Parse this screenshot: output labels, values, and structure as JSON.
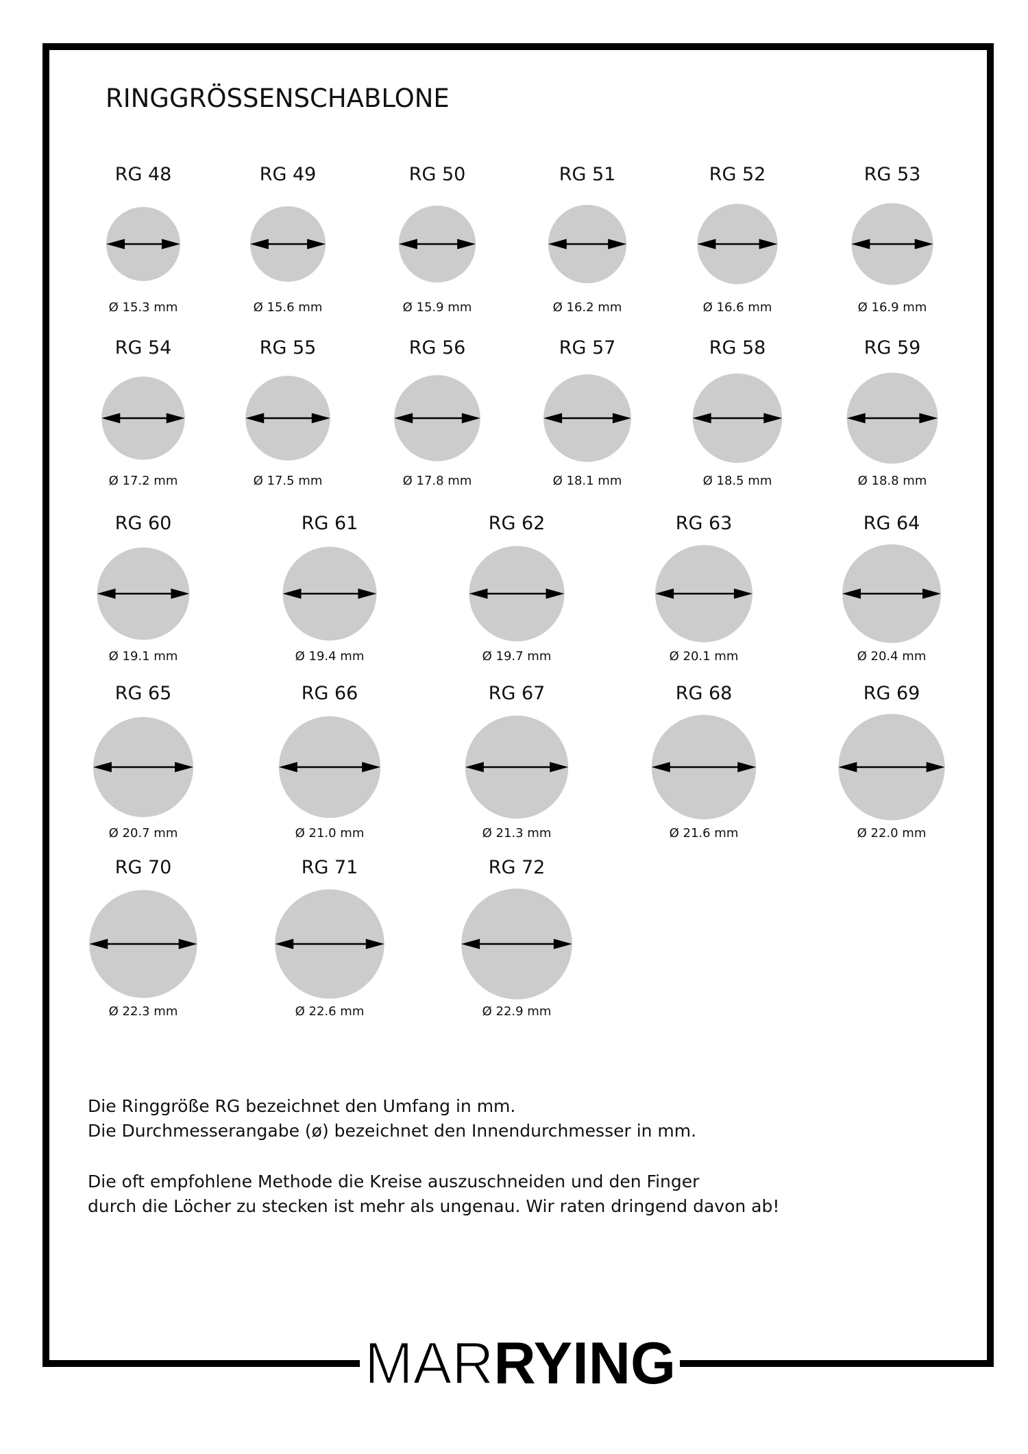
{
  "title": "RINGGRÖSSENSCHABLONE",
  "colors": {
    "circle_fill": "#cccccc",
    "border": "#000000",
    "arrow": "#000000"
  },
  "rows": [
    [
      {
        "label": "RG 48",
        "diameter_text": "Ø 15.3 mm",
        "diameter_mm": 15.3
      },
      {
        "label": "RG 49",
        "diameter_text": "Ø 15.6 mm",
        "diameter_mm": 15.6
      },
      {
        "label": "RG 50",
        "diameter_text": "Ø 15.9 mm",
        "diameter_mm": 15.9
      },
      {
        "label": "RG 51",
        "diameter_text": "Ø 16.2 mm",
        "diameter_mm": 16.2
      },
      {
        "label": "RG 52",
        "diameter_text": "Ø 16.6 mm",
        "diameter_mm": 16.6
      },
      {
        "label": "RG 53",
        "diameter_text": "Ø 16.9 mm",
        "diameter_mm": 16.9
      }
    ],
    [
      {
        "label": "RG 54",
        "diameter_text": "Ø 17.2 mm",
        "diameter_mm": 17.2
      },
      {
        "label": "RG 55",
        "diameter_text": "Ø 17.5 mm",
        "diameter_mm": 17.5
      },
      {
        "label": "RG 56",
        "diameter_text": "Ø 17.8 mm",
        "diameter_mm": 17.8
      },
      {
        "label": "RG 57",
        "diameter_text": "Ø 18.1 mm",
        "diameter_mm": 18.1
      },
      {
        "label": "RG 58",
        "diameter_text": "Ø 18.5 mm",
        "diameter_mm": 18.5
      },
      {
        "label": "RG 59",
        "diameter_text": "Ø 18.8 mm",
        "diameter_mm": 18.8
      }
    ],
    [
      {
        "label": "RG 60",
        "diameter_text": "Ø 19.1 mm",
        "diameter_mm": 19.1
      },
      {
        "label": "RG 61",
        "diameter_text": "Ø 19.4 mm",
        "diameter_mm": 19.4
      },
      {
        "label": "RG 62",
        "diameter_text": "Ø 19.7 mm",
        "diameter_mm": 19.7
      },
      {
        "label": "RG 63",
        "diameter_text": "Ø 20.1 mm",
        "diameter_mm": 20.1
      },
      {
        "label": "RG 64",
        "diameter_text": "Ø 20.4 mm",
        "diameter_mm": 20.4
      }
    ],
    [
      {
        "label": "RG 65",
        "diameter_text": "Ø 20.7 mm",
        "diameter_mm": 20.7
      },
      {
        "label": "RG 66",
        "diameter_text": "Ø 21.0 mm",
        "diameter_mm": 21.0
      },
      {
        "label": "RG 67",
        "diameter_text": "Ø 21.3 mm",
        "diameter_mm": 21.3
      },
      {
        "label": "RG 68",
        "diameter_text": "Ø 21.6 mm",
        "diameter_mm": 21.6
      },
      {
        "label": "RG 69",
        "diameter_text": "Ø 22.0 mm",
        "diameter_mm": 22.0
      }
    ],
    [
      {
        "label": "RG 70",
        "diameter_text": "Ø 22.3 mm",
        "diameter_mm": 22.3
      },
      {
        "label": "RG 71",
        "diameter_text": "Ø 22.6 mm",
        "diameter_mm": 22.6
      },
      {
        "label": "RG 72",
        "diameter_text": "Ø 22.9 mm",
        "diameter_mm": 22.9
      }
    ]
  ],
  "notes": [
    "Die Ringgröße RG bezeichnet den Umfang in mm.",
    "Die Durchmesserangabe (ø) bezeichnet den Innendurchmesser in mm.",
    "Die oft empfohlene Methode die Kreise auszuschneiden und den Finger",
    "durch die Löcher zu stecken ist mehr als ungenau. Wir raten dringend davon ab!"
  ],
  "logo": {
    "light": "MAR",
    "bold": "RYING"
  }
}
